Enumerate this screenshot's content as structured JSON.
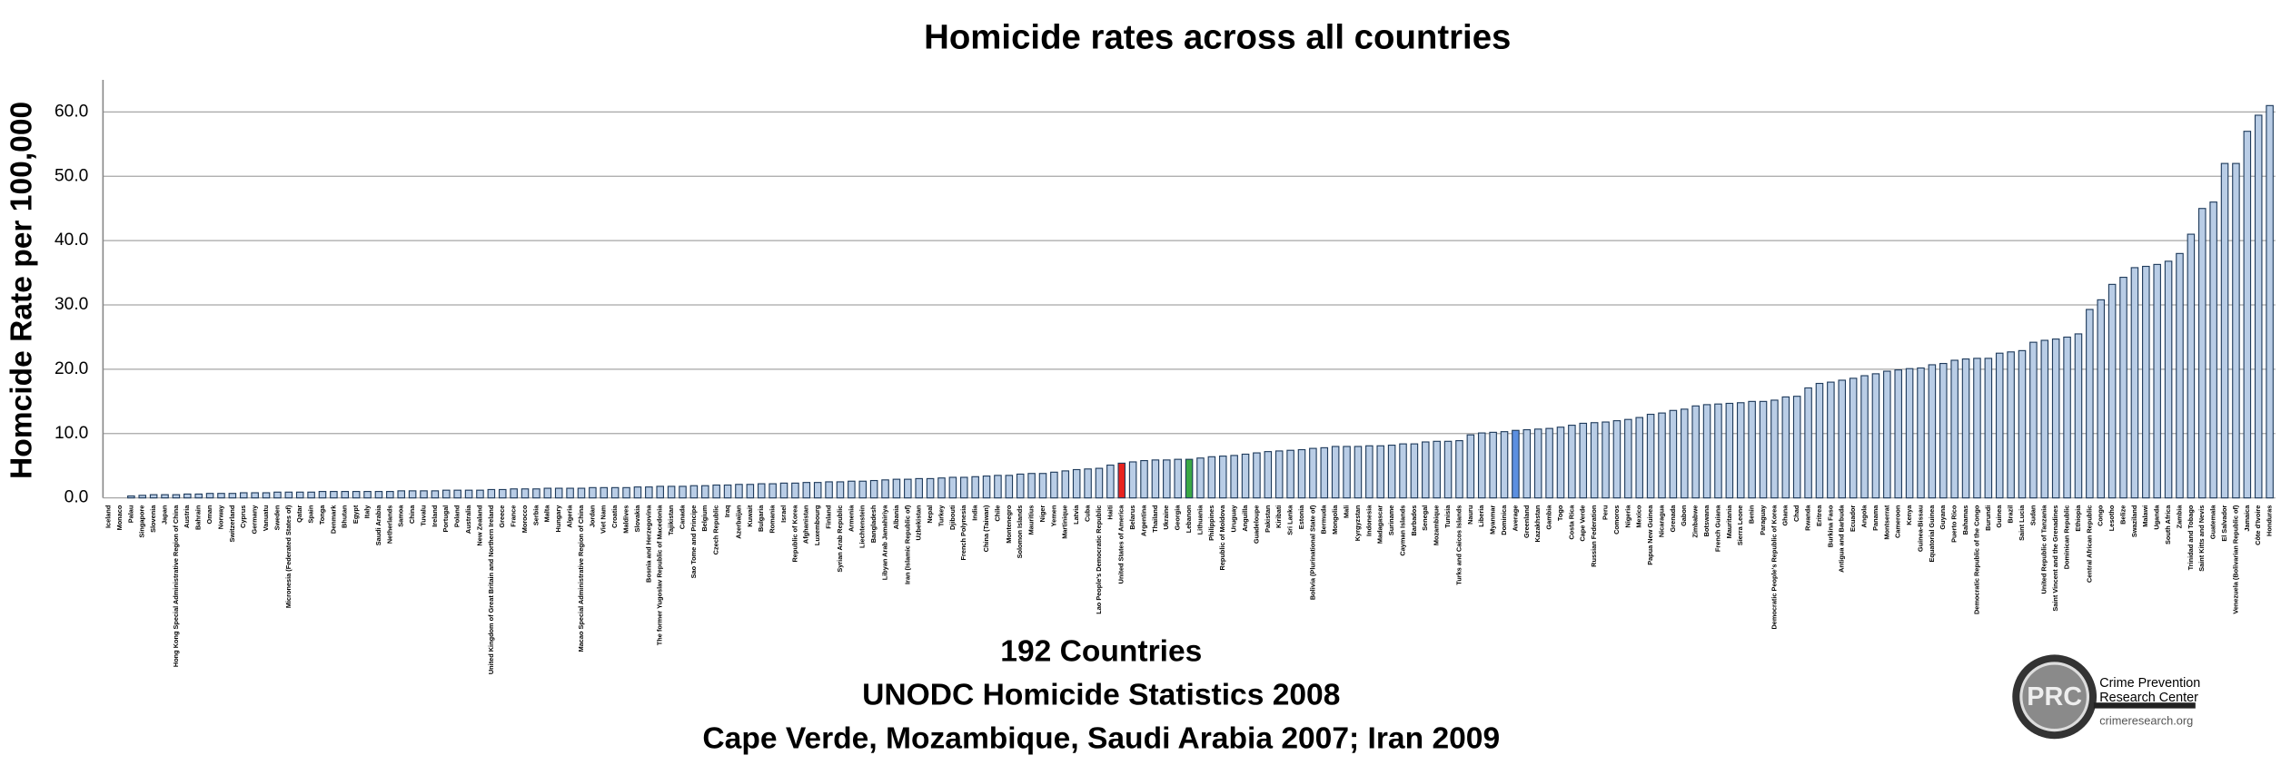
{
  "chart_data": {
    "type": "bar",
    "title": "Homicide rates across all countries",
    "y_label": "Homcide Rate per 100,000",
    "notes": [
      "192 Countries",
      "UNODC Homicide Statistics 2008",
      "Cape Verde, Mozambique, Saudi Arabia 2007; Iran 2009"
    ],
    "categories": [
      "Iceland",
      "Monaco",
      "Palau",
      "Singapore",
      "Slovenia",
      "Japan",
      "Hong Kong Special Administrative Region of China",
      "Austria",
      "Bahrain",
      "Oman",
      "Norway",
      "Switzerland",
      "Cyprus",
      "Germany",
      "Vanuatu",
      "Sweden",
      "Micronesia (Federated States of)",
      "Qatar",
      "Spain",
      "Tonga",
      "Denmark",
      "Bhutan",
      "Egypt",
      "Italy",
      "Saudi Arabia",
      "Netherlands",
      "Samoa",
      "China",
      "Tuvalu",
      "Ireland",
      "Portugal",
      "Poland",
      "Australia",
      "New Zealand",
      "United Kingdom of Great Britain and Northern Ireland",
      "Greece",
      "France",
      "Morocco",
      "Serbia",
      "Malta",
      "Hungary",
      "Algeria",
      "Macao Special Administrative Region of China",
      "Jordan",
      "Viet Nam",
      "Croatia",
      "Maldives",
      "Slovakia",
      "Bosnia and Herzegovina",
      "The former Yugoslav Republic of Macedonia",
      "Tajikistan",
      "Canada",
      "Sao Tome and Principe",
      "Belgium",
      "Czech Republic",
      "Iraq",
      "Azerbaijan",
      "Kuwait",
      "Bulgaria",
      "Romania",
      "Israel",
      "Republic of Korea",
      "Afghanistan",
      "Luxembourg",
      "Finland",
      "Syrian Arab Republic",
      "Armenia",
      "Liechtenstein",
      "Bangladesh",
      "Libyan Arab Jamahiriya",
      "Albania",
      "Iran (Islamic Republic of)",
      "Uzbekistan",
      "Nepal",
      "Turkey",
      "Djibouti",
      "French Polynesia",
      "India",
      "China (Taiwan)",
      "Chile",
      "Montenegro",
      "Solomon Islands",
      "Mauritius",
      "Niger",
      "Yemen",
      "Martinique",
      "Latvia",
      "Cuba",
      "Lao People's Democratic Republic",
      "Haiti",
      "United States of America",
      "Belarus",
      "Argentina",
      "Thailand",
      "Ukraine",
      "Georgia",
      "Lebanon",
      "Lithuania",
      "Philippines",
      "Republic of Moldova",
      "Uruguay",
      "Anguilla",
      "Guadeloupe",
      "Pakistan",
      "Kiribati",
      "Sri Lanka",
      "Estonia",
      "Bolivia (Plurinational State of)",
      "Bermuda",
      "Mongolia",
      "Mali",
      "Kyrgyzstan",
      "Indonesia",
      "Madagascar",
      "Suriname",
      "Cayman Islands",
      "Barbados",
      "Senegal",
      "Mozambique",
      "Tunisia",
      "Turks and Caicos Islands",
      "Nauru",
      "Liberia",
      "Myanmar",
      "Dominica",
      "Average",
      "Greenland",
      "Kazakhstan",
      "Gambia",
      "Togo",
      "Costa Rica",
      "Cape Verde",
      "Russian Federation",
      "Peru",
      "Comoros",
      "Nigeria",
      "Mexico",
      "Papua New Guinea",
      "Nicaragua",
      "Grenada",
      "Gabon",
      "Zimbabwe",
      "Botswana",
      "French Guiana",
      "Mauritania",
      "Sierra Leone",
      "Benin",
      "Paraguay",
      "Democratic People's Republic of Korea",
      "Ghana",
      "Chad",
      "Rwanda",
      "Eritrea",
      "Burkina Faso",
      "Antigua and Barbuda",
      "Ecuador",
      "Angola",
      "Panama",
      "Montserrat",
      "Cameroon",
      "Kenya",
      "Guinea-Bissau",
      "Equatorial Guinea",
      "Guyana",
      "Puerto Rico",
      "Bahamas",
      "Democratic Republic of the Congo",
      "Burundi",
      "Guinea",
      "Brazil",
      "Saint Lucia",
      "Sudan",
      "United Republic of Tanzania",
      "Saint Vincent and the Grenadines",
      "Dominican Republic",
      "Ethiopia",
      "Central African Republic",
      "Congo",
      "Lesotho",
      "Belize",
      "Swaziland",
      "Malawi",
      "Uganda",
      "South Africa",
      "Zambia",
      "Trinidad and Tobago",
      "Saint Kitts and Nevis",
      "Guatemala",
      "El Salvador",
      "Venezuela (Bolivarian Republic of)",
      "Jamaica",
      "Côte d'Ivoire",
      "Honduras"
    ],
    "values": [
      0,
      0,
      0.3,
      0.4,
      0.5,
      0.5,
      0.5,
      0.6,
      0.6,
      0.7,
      0.7,
      0.7,
      0.8,
      0.8,
      0.8,
      0.9,
      0.9,
      0.9,
      0.9,
      1.0,
      1.0,
      1.0,
      1.0,
      1.0,
      1.0,
      1.0,
      1.1,
      1.1,
      1.1,
      1.1,
      1.2,
      1.2,
      1.2,
      1.2,
      1.3,
      1.3,
      1.4,
      1.4,
      1.4,
      1.5,
      1.5,
      1.5,
      1.5,
      1.6,
      1.6,
      1.6,
      1.6,
      1.7,
      1.7,
      1.8,
      1.8,
      1.8,
      1.9,
      1.9,
      2.0,
      2.0,
      2.1,
      2.1,
      2.2,
      2.2,
      2.3,
      2.3,
      2.4,
      2.4,
      2.5,
      2.5,
      2.6,
      2.6,
      2.7,
      2.8,
      2.9,
      2.9,
      3.0,
      3.0,
      3.1,
      3.2,
      3.2,
      3.3,
      3.4,
      3.5,
      3.5,
      3.7,
      3.8,
      3.8,
      4.0,
      4.2,
      4.4,
      4.5,
      4.6,
      5.1,
      5.4,
      5.6,
      5.8,
      5.9,
      5.9,
      6.0,
      6.0,
      6.2,
      6.4,
      6.5,
      6.6,
      6.8,
      7.0,
      7.2,
      7.3,
      7.4,
      7.5,
      7.7,
      7.8,
      8.0,
      8.0,
      8.0,
      8.1,
      8.1,
      8.2,
      8.4,
      8.4,
      8.7,
      8.8,
      8.8,
      8.9,
      9.8,
      10.1,
      10.2,
      10.3,
      10.5,
      10.6,
      10.7,
      10.8,
      11.0,
      11.3,
      11.6,
      11.7,
      11.8,
      12.0,
      12.2,
      12.5,
      13.0,
      13.2,
      13.6,
      13.8,
      14.3,
      14.5,
      14.6,
      14.7,
      14.8,
      15.0,
      15.0,
      15.2,
      15.7,
      15.8,
      17.1,
      17.8,
      18.0,
      18.3,
      18.6,
      19.0,
      19.3,
      19.7,
      19.9,
      20.1,
      20.2,
      20.7,
      20.9,
      21.4,
      21.6,
      21.7,
      21.7,
      22.5,
      22.7,
      22.9,
      24.2,
      24.5,
      24.7,
      25.0,
      25.5,
      29.3,
      30.8,
      33.2,
      34.3,
      35.8,
      36.0,
      36.3,
      36.8,
      38.0,
      41.0,
      45.0,
      46.0,
      52.0,
      52.0,
      57.0,
      59.5,
      61.0
    ],
    "color": "#b9cde6",
    "highlights": [
      {
        "index": 90,
        "color": "#e8231f"
      },
      {
        "index": 96,
        "color": "#3aa845"
      },
      {
        "index": 125,
        "color": "#5b8fe0"
      }
    ],
    "ylim": [
      0,
      65
    ],
    "yticks": [
      {
        "value": 0,
        "label": "0.0"
      },
      {
        "value": 10,
        "label": "10.0"
      },
      {
        "value": 20,
        "label": "20.0"
      },
      {
        "value": 30,
        "label": "30.0"
      },
      {
        "value": 40,
        "label": "40.0"
      },
      {
        "value": 50,
        "label": "50.0"
      },
      {
        "value": 60,
        "label": "60.0"
      }
    ],
    "grid": true
  },
  "logo": {
    "initials": "PRC",
    "name": [
      "Crime Prevention",
      "Research Center"
    ],
    "url": "crimeresearch.org"
  }
}
